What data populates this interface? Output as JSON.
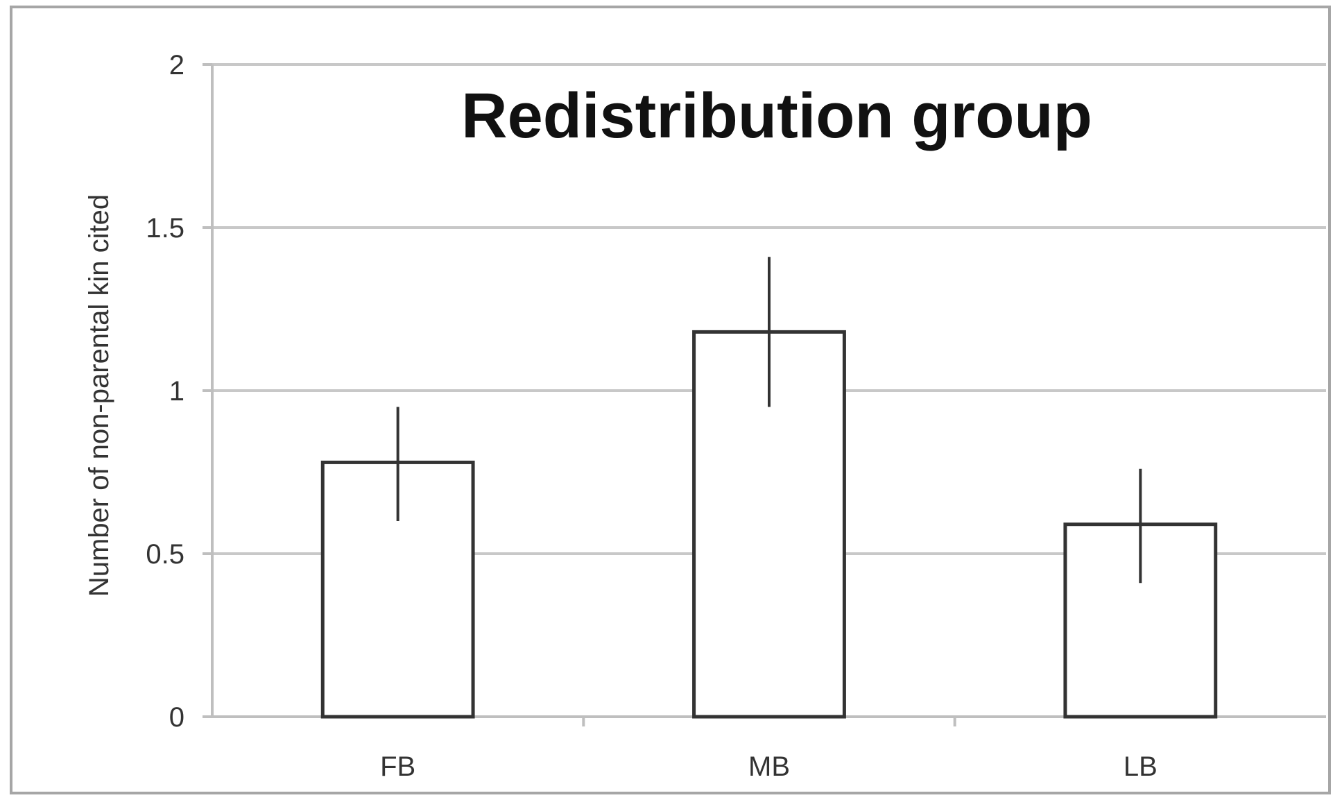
{
  "chart_data": {
    "type": "bar",
    "title": "Redistribution group",
    "xlabel": "",
    "ylabel": "Number of non-parental kin cited",
    "categories": [
      "FB",
      "MB",
      "LB"
    ],
    "values": [
      0.78,
      1.18,
      0.59
    ],
    "error_bars": {
      "low": [
        0.6,
        0.95,
        0.41
      ],
      "high": [
        0.95,
        1.41,
        0.76
      ]
    },
    "ylim": [
      0,
      2
    ],
    "yticks": [
      "0",
      "0.5",
      "1",
      "1.5",
      "2"
    ],
    "ytick_values": [
      0,
      0.5,
      1,
      1.5,
      2
    ],
    "grid": true,
    "legend": "none",
    "colors": {
      "bar_fill": "#ffffff",
      "bar_stroke": "#333333",
      "grid": "#c8c8c8",
      "axis": "#bfbfbf",
      "error_bar": "#333333"
    }
  }
}
